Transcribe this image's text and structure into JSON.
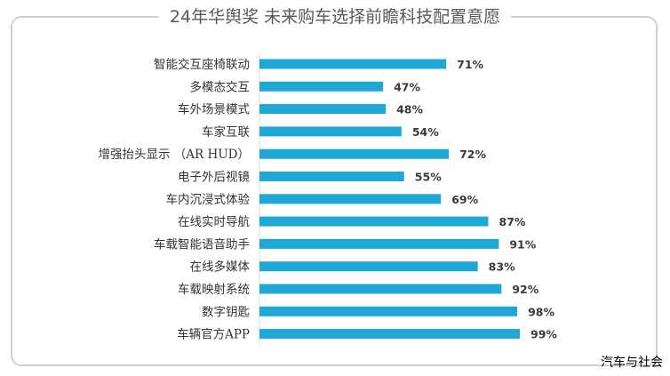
{
  "chart_data": {
    "type": "bar",
    "orientation": "horizontal",
    "title": "24年华舆奖 未来购车选择前瞻科技配置意愿",
    "categories": [
      "智能交互座椅联动",
      "多模态交互",
      "车外场景模式",
      "车家互联",
      "增强抬头显示 （AR HUD）",
      "电子外后视镜",
      "车内沉浸式体验",
      "在线实时导航",
      "车载智能语音助手",
      "在线多媒体",
      "车载映射系统",
      "数字钥匙",
      "车辆官方APP"
    ],
    "values": [
      71,
      47,
      48,
      54,
      72,
      55,
      69,
      87,
      91,
      83,
      92,
      98,
      99
    ],
    "value_labels": [
      "71%",
      "47%",
      "48%",
      "54%",
      "72%",
      "55%",
      "69%",
      "87%",
      "91%",
      "83%",
      "92%",
      "98%",
      "99%"
    ],
    "value_unit": "%",
    "xlim": [
      0,
      100
    ],
    "grid": false,
    "legend": "none",
    "bar_color": "#1fa8d6"
  },
  "watermark": "汽车与社会"
}
